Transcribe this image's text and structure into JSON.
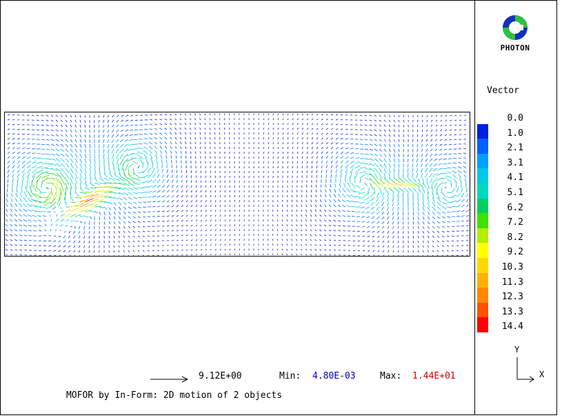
{
  "logo": {
    "text": "PHOTON",
    "icon": "photon-logo-icon"
  },
  "legend": {
    "title": "Vector",
    "items": [
      {
        "label": "0.0",
        "color": "#ffffff"
      },
      {
        "label": "1.0",
        "color": "#0020e0"
      },
      {
        "label": "2.1",
        "color": "#0060ff"
      },
      {
        "label": "3.1",
        "color": "#00a0ff"
      },
      {
        "label": "4.1",
        "color": "#00c8e8"
      },
      {
        "label": "5.1",
        "color": "#00d8c0"
      },
      {
        "label": "6.2",
        "color": "#00d060"
      },
      {
        "label": "7.2",
        "color": "#40e000"
      },
      {
        "label": "8.2",
        "color": "#b0f000"
      },
      {
        "label": "9.2",
        "color": "#ffff00"
      },
      {
        "label": "10.3",
        "color": "#ffd800"
      },
      {
        "label": "11.3",
        "color": "#ffb000"
      },
      {
        "label": "12.3",
        "color": "#ff8800"
      },
      {
        "label": "13.3",
        "color": "#ff5000"
      },
      {
        "label": "14.4",
        "color": "#ff0000"
      }
    ]
  },
  "axes": {
    "y_label": "Y",
    "x_label": "X"
  },
  "footer": {
    "scale_value": "9.12E+00",
    "min_label": "Min:",
    "min_value": "4.80E-03",
    "max_label": "Max:",
    "max_value": "1.44E+01",
    "caption": "MOFOR by In-Form: 2D motion of 2 objects"
  }
}
